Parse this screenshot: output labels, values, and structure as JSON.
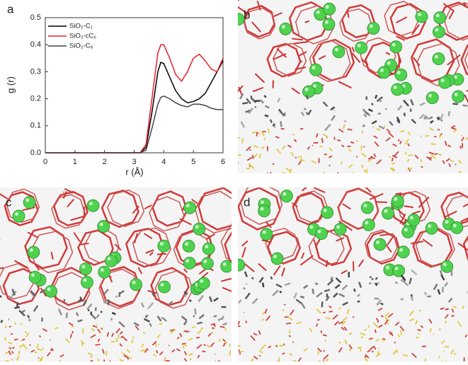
{
  "chart_data": {
    "type": "line",
    "panel_label": "a",
    "x_label": "r (Å)",
    "y_label": "g (r)",
    "x": [
      0,
      0.5,
      1,
      1.5,
      2,
      2.5,
      3,
      3.2,
      3.4,
      3.6,
      3.8,
      3.9,
      4,
      4.2,
      4.4,
      4.6,
      4.8,
      5,
      5.2,
      5.4,
      5.6,
      5.8,
      6
    ],
    "series": [
      {
        "name": "SiO₂-C₁",
        "color": "#000000",
        "values": [
          0,
          0,
          0,
          0,
          0,
          0,
          0,
          0,
          0.02,
          0.15,
          0.3,
          0.335,
          0.33,
          0.28,
          0.23,
          0.2,
          0.185,
          0.19,
          0.2,
          0.22,
          0.26,
          0.3,
          0.34
        ]
      },
      {
        "name": "SiO₂-cC₆",
        "color": "#e8202a",
        "values": [
          0,
          0,
          0,
          0,
          0,
          0,
          0,
          0,
          0.03,
          0.2,
          0.37,
          0.4,
          0.4,
          0.35,
          0.29,
          0.265,
          0.3,
          0.35,
          0.365,
          0.34,
          0.31,
          0.3,
          0.35
        ]
      },
      {
        "name": "SiO₂-C₈",
        "color": "#444444",
        "values": [
          0,
          0,
          0,
          0,
          0,
          0,
          0,
          0,
          0.01,
          0.09,
          0.18,
          0.205,
          0.21,
          0.2,
          0.185,
          0.175,
          0.17,
          0.18,
          0.18,
          0.175,
          0.165,
          0.16,
          0.16
        ]
      }
    ],
    "xlim": [
      0,
      6
    ],
    "xticks": [
      0,
      1,
      2,
      3,
      4,
      5,
      6
    ],
    "ylim": [
      0,
      0.5
    ],
    "yticks": [
      {
        "value": 0,
        "label": "0.0"
      },
      0.1,
      0.2,
      0.3,
      0.4,
      0.5
    ]
  },
  "panels": [
    {
      "label": "b"
    },
    {
      "label": "c"
    },
    {
      "label": "d"
    }
  ]
}
